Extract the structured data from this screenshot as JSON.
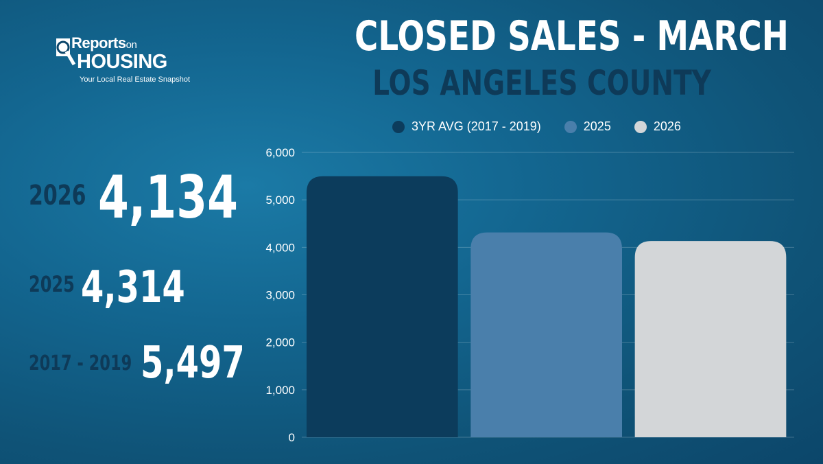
{
  "brand": {
    "name_top": "Reports",
    "name_top_suffix": "on",
    "name_main": "HOUSING",
    "tagline": "Your Local Real Estate Snapshot"
  },
  "header": {
    "title": "CLOSED SALES  -  MARCH",
    "subtitle": "LOS ANGELES COUNTY"
  },
  "stats": [
    {
      "label": "2026",
      "value": "4,134"
    },
    {
      "label": "2025",
      "value": "4,314"
    },
    {
      "label": "2017 - 2019",
      "value": "5,497"
    }
  ],
  "colors": {
    "avg": "#0c3c5c",
    "y2025": "#4a7fab",
    "y2026": "#d3d6d8",
    "subtitle": "#0e3a58"
  },
  "chart_data": {
    "type": "bar",
    "categories": [
      "3YR AVG (2017 - 2019)",
      "2025",
      "2026"
    ],
    "values": [
      5497,
      4314,
      4134
    ],
    "ylim": [
      0,
      6000
    ],
    "yticks": [
      "0",
      "1,000",
      "2,000",
      "3,000",
      "4,000",
      "5,000",
      "6,000"
    ],
    "legend": [
      {
        "name": "3YR AVG (2017 - 2019)",
        "color": "#0c3c5c"
      },
      {
        "name": "2025",
        "color": "#4a7fab"
      },
      {
        "name": "2026",
        "color": "#d3d6d8"
      }
    ],
    "grid": true,
    "legend_position": "top"
  }
}
